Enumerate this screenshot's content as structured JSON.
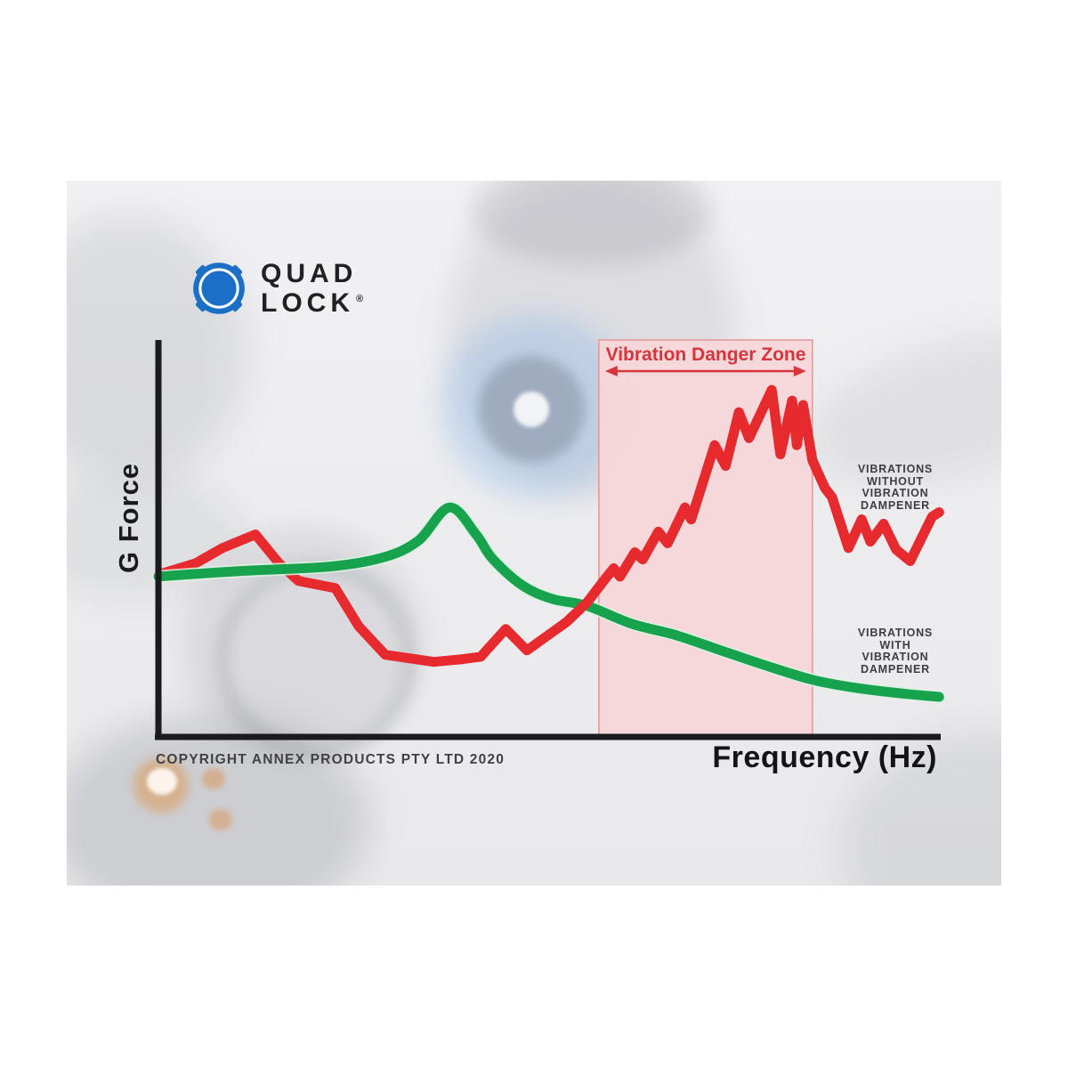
{
  "page": {
    "background": "#ffffff",
    "card_background": "#ececee"
  },
  "logo": {
    "icon": "quad-lock-mount-icon",
    "word1": "QUAD",
    "word2": "LOCK",
    "registered_mark": "®",
    "icon_color": "#1c6fc7",
    "text_color": "#232021"
  },
  "chart_data": {
    "type": "line",
    "xlabel": "Frequency (Hz)",
    "ylabel": "G Force",
    "x_range": [
      0,
      100
    ],
    "y_range": [
      0,
      100
    ],
    "grid": false,
    "axis_color": "#1b1b1d",
    "annotations": {
      "danger_zone": {
        "label": "Vibration Danger Zone",
        "x_start": 56.3,
        "x_end": 83.6,
        "fill": "#f8d7d9",
        "border": "#e39a9d",
        "label_color": "#d7353c",
        "arrow": "double-headed"
      }
    },
    "series": [
      {
        "id": "without_dampener",
        "name": "VIBRATIONS WITHOUT VIBRATION DAMPENER",
        "color": "#e62a2e",
        "smooth": false,
        "points": [
          [
            0,
            40.9
          ],
          [
            4.8,
            43.8
          ],
          [
            8.2,
            47.6
          ],
          [
            12.4,
            51.0
          ],
          [
            15.4,
            43.8
          ],
          [
            17.9,
            39.3
          ],
          [
            22.6,
            37.5
          ],
          [
            25.6,
            27.9
          ],
          [
            29.0,
            20.7
          ],
          [
            32.1,
            19.8
          ],
          [
            35.2,
            18.9
          ],
          [
            38.9,
            19.6
          ],
          [
            41.2,
            20.2
          ],
          [
            44.4,
            27.2
          ],
          [
            47.1,
            21.8
          ],
          [
            52.2,
            29.0
          ],
          [
            54.8,
            33.9
          ],
          [
            57.1,
            39.8
          ],
          [
            58.2,
            42.5
          ],
          [
            59.0,
            40.4
          ],
          [
            60.9,
            46.5
          ],
          [
            61.9,
            44.7
          ],
          [
            63.9,
            51.7
          ],
          [
            65.1,
            48.8
          ],
          [
            67.3,
            57.8
          ],
          [
            68.1,
            54.8
          ],
          [
            71.1,
            73.5
          ],
          [
            72.5,
            68.3
          ],
          [
            74.2,
            81.8
          ],
          [
            75.5,
            75.3
          ],
          [
            78.4,
            87.4
          ],
          [
            79.5,
            71.2
          ],
          [
            81.0,
            84.7
          ],
          [
            81.6,
            73.5
          ],
          [
            82.4,
            83.6
          ],
          [
            83.6,
            69.7
          ],
          [
            85.2,
            62.7
          ],
          [
            86.1,
            60.4
          ],
          [
            88.2,
            47.6
          ],
          [
            89.9,
            54.8
          ],
          [
            91.0,
            49.2
          ],
          [
            92.7,
            53.7
          ],
          [
            94.3,
            47.2
          ],
          [
            96.1,
            44.3
          ],
          [
            98.9,
            55.5
          ],
          [
            99.8,
            56.6
          ]
        ]
      },
      {
        "id": "with_dampener",
        "name": "VIBRATIONS WITH VIBRATION DAMPENER",
        "color": "#17a24e",
        "smooth": true,
        "points": [
          [
            0,
            40.4
          ],
          [
            10.5,
            41.8
          ],
          [
            21.8,
            42.9
          ],
          [
            28.7,
            45.2
          ],
          [
            33.2,
            49.4
          ],
          [
            37.2,
            57.8
          ],
          [
            40.6,
            51.0
          ],
          [
            42.7,
            44.9
          ],
          [
            46.5,
            38.2
          ],
          [
            50.3,
            34.8
          ],
          [
            54.8,
            33.0
          ],
          [
            60.5,
            28.5
          ],
          [
            66.2,
            25.6
          ],
          [
            71.9,
            21.8
          ],
          [
            77.6,
            18.0
          ],
          [
            83.6,
            14.4
          ],
          [
            89.0,
            12.4
          ],
          [
            94.7,
            11.0
          ],
          [
            99.8,
            10.1
          ]
        ]
      }
    ],
    "legend": [
      {
        "series_id": "without_dampener",
        "lines": [
          "VIBRATIONS",
          "WITHOUT",
          "VIBRATION",
          "DAMPENER"
        ]
      },
      {
        "series_id": "with_dampener",
        "lines": [
          "VIBRATIONS",
          "WITH",
          "VIBRATION",
          "DAMPENER"
        ]
      }
    ],
    "legend_text_color": "#3e3e40"
  },
  "footer": {
    "copyright": "COPYRIGHT ANNEX PRODUCTS PTY LTD 2020"
  }
}
